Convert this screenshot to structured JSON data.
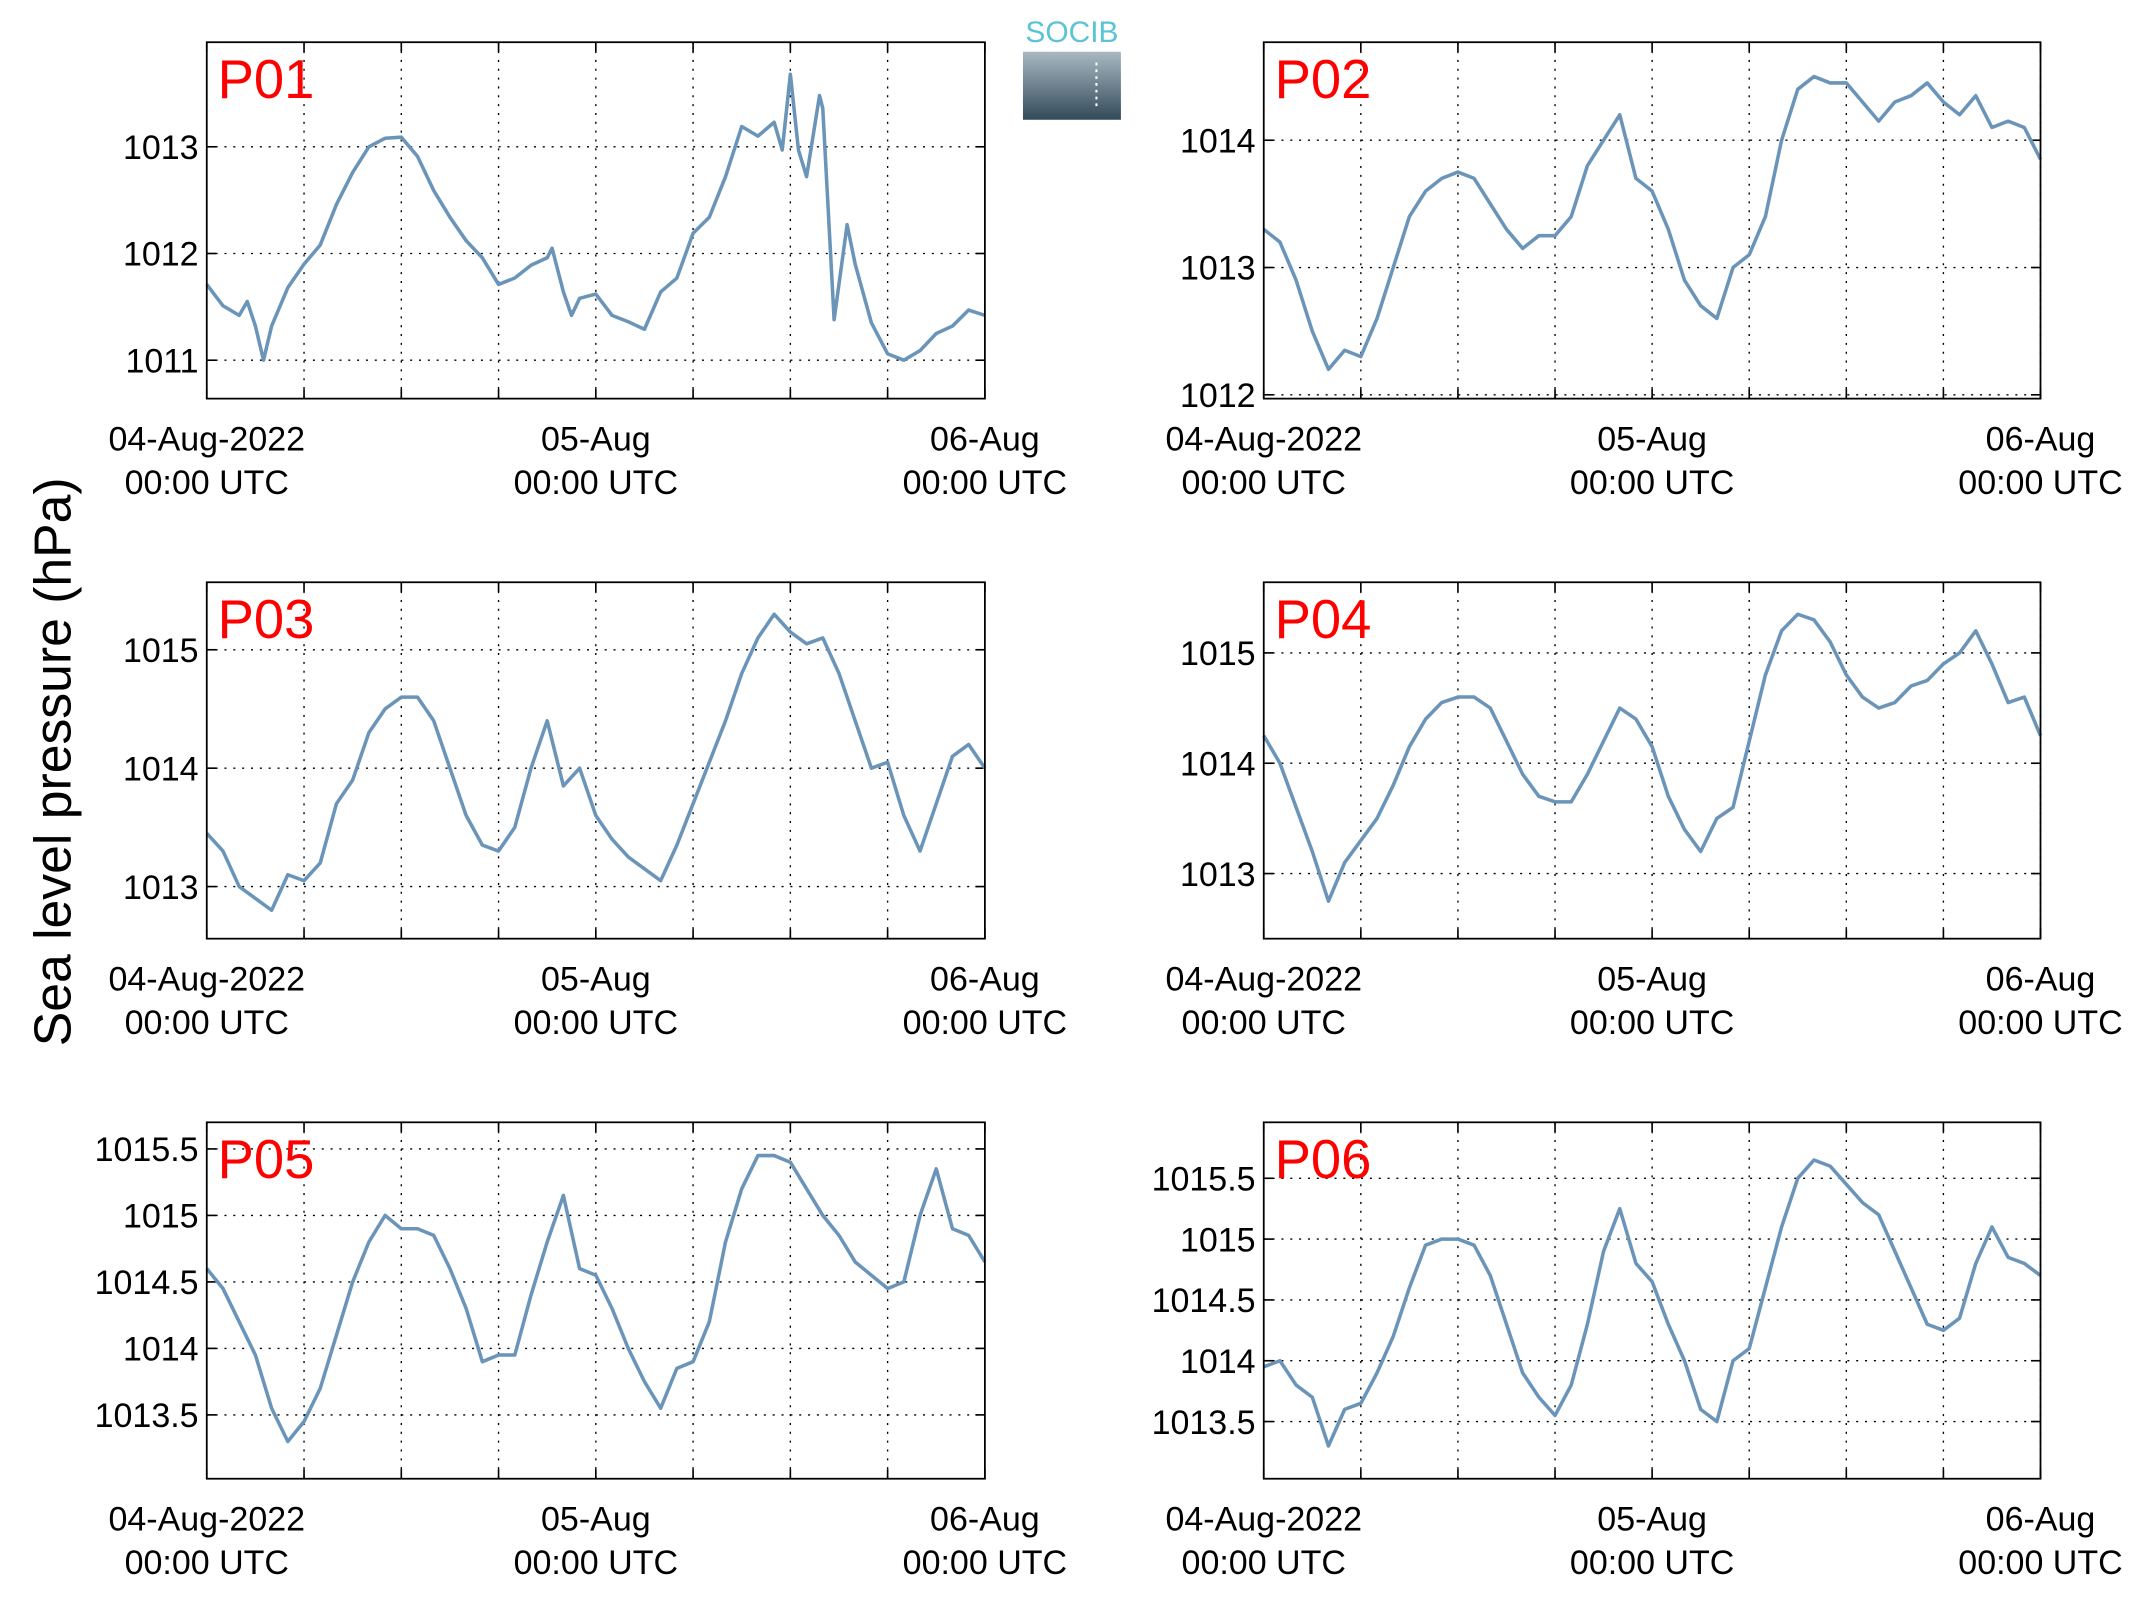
{
  "figure": {
    "ylabel": "Sea level pressure (hPa)",
    "logo": "SOCIB"
  },
  "chart_data": [
    {
      "type": "line",
      "title": "P01",
      "color": "#6b94b9",
      "grid": true,
      "x": [
        0,
        1,
        2,
        2.5,
        3,
        3.5,
        4,
        5,
        6,
        7,
        8,
        9,
        10,
        11,
        12,
        13,
        14,
        15,
        16,
        17,
        18,
        19,
        20,
        21,
        21.3,
        22,
        22.5,
        23,
        24,
        25,
        26,
        27,
        28,
        29,
        30,
        31,
        32,
        33,
        34,
        35,
        35.5,
        36,
        36.5,
        37,
        37.8,
        38,
        38.7,
        39.5,
        40,
        41,
        42,
        43,
        44,
        45,
        46,
        47,
        48
      ],
      "values": [
        1011.71,
        1011.51,
        1011.42,
        1011.55,
        1011.32,
        1011.0,
        1011.32,
        1011.68,
        1011.9,
        1012.08,
        1012.46,
        1012.76,
        1013.0,
        1013.08,
        1013.09,
        1012.91,
        1012.59,
        1012.34,
        1012.12,
        1011.96,
        1011.71,
        1011.77,
        1011.89,
        1011.96,
        1012.05,
        1011.64,
        1011.42,
        1011.58,
        1011.62,
        1011.42,
        1011.36,
        1011.29,
        1011.64,
        1011.77,
        1012.19,
        1012.34,
        1012.72,
        1013.19,
        1013.1,
        1013.23,
        1012.97,
        1013.68,
        1012.97,
        1012.72,
        1013.48,
        1013.36,
        1011.38,
        1012.27,
        1011.9,
        1011.35,
        1011.06,
        1011.0,
        1011.09,
        1011.25,
        1011.32,
        1011.47,
        1011.42
      ],
      "xlim": [
        0,
        48
      ],
      "ylim": [
        1010.64,
        1013.98
      ],
      "yticks": [
        1011,
        1012,
        1013
      ],
      "xticks": [
        {
          "value": 0,
          "label": "04-Aug-2022",
          "sublabel": "00:00 UTC"
        },
        {
          "value": 24,
          "label": "05-Aug",
          "sublabel": "00:00 UTC"
        },
        {
          "value": 48,
          "label": "06-Aug",
          "sublabel": "00:00 UTC"
        }
      ],
      "xminorticks": [
        6,
        12,
        18,
        30,
        36,
        42
      ]
    },
    {
      "type": "line",
      "title": "P02",
      "color": "#6b94b9",
      "grid": true,
      "x": [
        0,
        1,
        2,
        3,
        4,
        5,
        6,
        7,
        8,
        9,
        10,
        11,
        12,
        13,
        14,
        15,
        16,
        17,
        18,
        19,
        20,
        21,
        22,
        23,
        24,
        25,
        26,
        27,
        28,
        29,
        30,
        31,
        32,
        33,
        34,
        35,
        36,
        37,
        38,
        39,
        40,
        41,
        42,
        43,
        44,
        45,
        46,
        47,
        48
      ],
      "values": [
        1013.3,
        1013.2,
        1012.9,
        1012.5,
        1012.2,
        1012.35,
        1012.3,
        1012.6,
        1013.0,
        1013.4,
        1013.6,
        1013.7,
        1013.75,
        1013.7,
        1013.5,
        1013.3,
        1013.15,
        1013.25,
        1013.25,
        1013.4,
        1013.8,
        1014.0,
        1014.2,
        1013.7,
        1013.6,
        1013.3,
        1012.9,
        1012.7,
        1012.6,
        1013.0,
        1013.1,
        1013.4,
        1014.0,
        1014.4,
        1014.5,
        1014.45,
        1014.45,
        1014.3,
        1014.15,
        1014.3,
        1014.35,
        1014.45,
        1014.3,
        1014.2,
        1014.35,
        1014.1,
        1014.15,
        1014.1,
        1013.85
      ],
      "xlim": [
        0,
        48
      ],
      "ylim": [
        1011.97,
        1014.77
      ],
      "yticks": [
        1012,
        1013,
        1014
      ],
      "xticks": [
        {
          "value": 0,
          "label": "04-Aug-2022",
          "sublabel": "00:00 UTC"
        },
        {
          "value": 24,
          "label": "05-Aug",
          "sublabel": "00:00 UTC"
        },
        {
          "value": 48,
          "label": "06-Aug",
          "sublabel": "00:00 UTC"
        }
      ],
      "xminorticks": [
        6,
        12,
        18,
        30,
        36,
        42
      ]
    },
    {
      "type": "line",
      "title": "P03",
      "color": "#6b94b9",
      "grid": true,
      "x": [
        0,
        1,
        2,
        3,
        4,
        5,
        6,
        7,
        8,
        9,
        10,
        11,
        12,
        13,
        14,
        15,
        16,
        17,
        18,
        19,
        20,
        21,
        22,
        23,
        24,
        25,
        26,
        27,
        28,
        29,
        30,
        31,
        32,
        33,
        34,
        35,
        36,
        37,
        38,
        39,
        40,
        41,
        42,
        43,
        44,
        45,
        46,
        47,
        48
      ],
      "values": [
        1013.45,
        1013.3,
        1013.0,
        1012.9,
        1012.8,
        1013.1,
        1013.05,
        1013.2,
        1013.7,
        1013.9,
        1014.3,
        1014.5,
        1014.6,
        1014.6,
        1014.4,
        1014.0,
        1013.6,
        1013.35,
        1013.3,
        1013.5,
        1014.0,
        1014.4,
        1013.85,
        1014.0,
        1013.6,
        1013.4,
        1013.25,
        1013.15,
        1013.05,
        1013.35,
        1013.7,
        1014.05,
        1014.4,
        1014.8,
        1015.1,
        1015.3,
        1015.15,
        1015.05,
        1015.1,
        1014.8,
        1014.4,
        1014.0,
        1014.05,
        1013.6,
        1013.3,
        1013.7,
        1014.1,
        1014.2,
        1014.0
      ],
      "xlim": [
        0,
        48
      ],
      "ylim": [
        1012.56,
        1015.57
      ],
      "yticks": [
        1013,
        1014,
        1015
      ],
      "xticks": [
        {
          "value": 0,
          "label": "04-Aug-2022",
          "sublabel": "00:00 UTC"
        },
        {
          "value": 24,
          "label": "05-Aug",
          "sublabel": "00:00 UTC"
        },
        {
          "value": 48,
          "label": "06-Aug",
          "sublabel": "00:00 UTC"
        }
      ],
      "xminorticks": [
        6,
        12,
        18,
        30,
        36,
        42
      ]
    },
    {
      "type": "line",
      "title": "P04",
      "color": "#6b94b9",
      "grid": true,
      "x": [
        0,
        1,
        2,
        3,
        4,
        5,
        6,
        7,
        8,
        9,
        10,
        11,
        12,
        13,
        14,
        15,
        16,
        17,
        18,
        19,
        20,
        21,
        22,
        23,
        24,
        25,
        26,
        27,
        28,
        29,
        30,
        31,
        32,
        33,
        34,
        35,
        36,
        37,
        38,
        39,
        40,
        41,
        42,
        43,
        44,
        45,
        46,
        47,
        48
      ],
      "values": [
        1014.25,
        1014.0,
        1013.6,
        1013.2,
        1012.75,
        1013.1,
        1013.3,
        1013.5,
        1013.8,
        1014.15,
        1014.4,
        1014.55,
        1014.6,
        1014.6,
        1014.5,
        1014.2,
        1013.9,
        1013.7,
        1013.65,
        1013.65,
        1013.9,
        1014.2,
        1014.5,
        1014.4,
        1014.15,
        1013.7,
        1013.4,
        1013.2,
        1013.5,
        1013.6,
        1014.2,
        1014.8,
        1015.2,
        1015.35,
        1015.3,
        1015.1,
        1014.8,
        1014.6,
        1014.5,
        1014.55,
        1014.7,
        1014.75,
        1014.9,
        1015.0,
        1015.2,
        1014.9,
        1014.55,
        1014.6,
        1014.25
      ],
      "xlim": [
        0,
        48
      ],
      "ylim": [
        1012.41,
        1015.64
      ],
      "yticks": [
        1013,
        1014,
        1015
      ],
      "xticks": [
        {
          "value": 0,
          "label": "04-Aug-2022",
          "sublabel": "00:00 UTC"
        },
        {
          "value": 24,
          "label": "05-Aug",
          "sublabel": "00:00 UTC"
        },
        {
          "value": 48,
          "label": "06-Aug",
          "sublabel": "00:00 UTC"
        }
      ],
      "xminorticks": [
        6,
        12,
        18,
        30,
        36,
        42
      ]
    },
    {
      "type": "line",
      "title": "P05",
      "color": "#6b94b9",
      "grid": true,
      "x": [
        0,
        1,
        2,
        3,
        4,
        5,
        6,
        7,
        8,
        9,
        10,
        11,
        12,
        13,
        14,
        15,
        16,
        17,
        18,
        19,
        20,
        21,
        22,
        23,
        24,
        25,
        26,
        27,
        28,
        29,
        30,
        31,
        32,
        33,
        34,
        35,
        36,
        37,
        38,
        39,
        40,
        41,
        42,
        43,
        44,
        45,
        46,
        47,
        48
      ],
      "values": [
        1014.6,
        1014.45,
        1014.2,
        1013.95,
        1013.55,
        1013.3,
        1013.45,
        1013.7,
        1014.1,
        1014.5,
        1014.8,
        1015.0,
        1014.9,
        1014.9,
        1014.85,
        1014.6,
        1014.3,
        1013.9,
        1013.95,
        1013.95,
        1014.4,
        1014.8,
        1015.15,
        1014.6,
        1014.55,
        1014.3,
        1014.0,
        1013.75,
        1013.55,
        1013.85,
        1013.9,
        1014.2,
        1014.8,
        1015.2,
        1015.45,
        1015.45,
        1015.4,
        1015.2,
        1015.0,
        1014.85,
        1014.65,
        1014.55,
        1014.45,
        1014.5,
        1015.0,
        1015.35,
        1014.9,
        1014.85,
        1014.65
      ],
      "xlim": [
        0,
        48
      ],
      "ylim": [
        1013.02,
        1015.7
      ],
      "yticks": [
        1013.5,
        1014,
        1014.5,
        1015,
        1015.5
      ],
      "xticks": [
        {
          "value": 0,
          "label": "04-Aug-2022",
          "sublabel": "00:00 UTC"
        },
        {
          "value": 24,
          "label": "05-Aug",
          "sublabel": "00:00 UTC"
        },
        {
          "value": 48,
          "label": "06-Aug",
          "sublabel": "00:00 UTC"
        }
      ],
      "xminorticks": [
        6,
        12,
        18,
        30,
        36,
        42
      ]
    },
    {
      "type": "line",
      "title": "P06",
      "color": "#6b94b9",
      "grid": true,
      "x": [
        0,
        1,
        2,
        3,
        4,
        5,
        6,
        7,
        8,
        9,
        10,
        11,
        12,
        13,
        14,
        15,
        16,
        17,
        18,
        19,
        20,
        21,
        22,
        23,
        24,
        25,
        26,
        27,
        28,
        29,
        30,
        31,
        32,
        33,
        34,
        35,
        36,
        37,
        38,
        39,
        40,
        41,
        42,
        43,
        44,
        45,
        46,
        47,
        48
      ],
      "values": [
        1013.95,
        1014.0,
        1013.8,
        1013.7,
        1013.3,
        1013.6,
        1013.65,
        1013.9,
        1014.2,
        1014.6,
        1014.95,
        1015.0,
        1015.0,
        1014.95,
        1014.7,
        1014.3,
        1013.9,
        1013.7,
        1013.55,
        1013.8,
        1014.3,
        1014.9,
        1015.25,
        1014.8,
        1014.65,
        1014.3,
        1014.0,
        1013.6,
        1013.5,
        1014.0,
        1014.1,
        1014.6,
        1015.1,
        1015.5,
        1015.65,
        1015.6,
        1015.45,
        1015.3,
        1015.2,
        1014.9,
        1014.6,
        1014.3,
        1014.25,
        1014.35,
        1014.8,
        1015.1,
        1014.85,
        1014.8,
        1014.7
      ],
      "xlim": [
        0,
        48
      ],
      "ylim": [
        1013.03,
        1015.96
      ],
      "yticks": [
        1013.5,
        1014,
        1014.5,
        1015,
        1015.5
      ],
      "xticks": [
        {
          "value": 0,
          "label": "04-Aug-2022",
          "sublabel": "00:00 UTC"
        },
        {
          "value": 24,
          "label": "05-Aug",
          "sublabel": "00:00 UTC"
        },
        {
          "value": 48,
          "label": "06-Aug",
          "sublabel": "00:00 UTC"
        }
      ],
      "xminorticks": [
        6,
        12,
        18,
        30,
        36,
        42
      ]
    }
  ]
}
